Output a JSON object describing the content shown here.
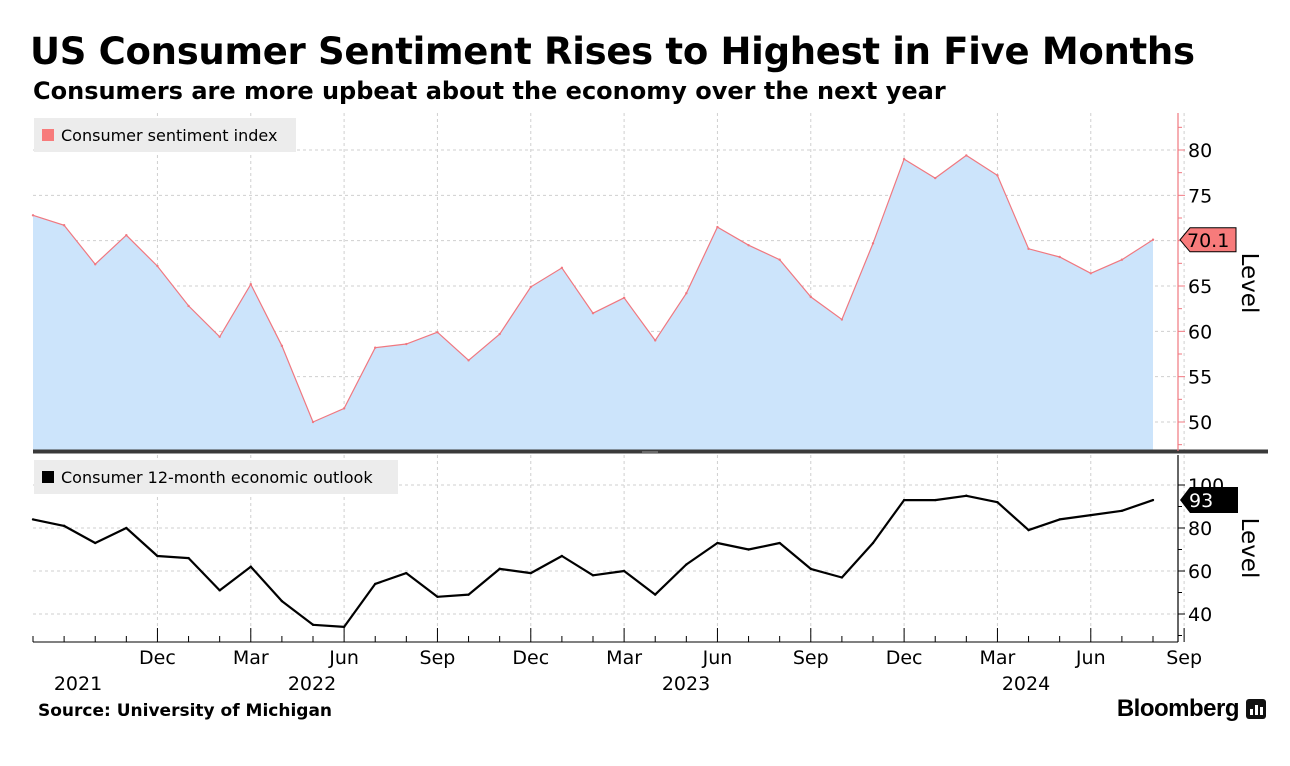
{
  "header": {
    "title": "US Consumer Sentiment Rises to Highest in Five Months",
    "subtitle": "Consumers are more upbeat about the economy over the next year"
  },
  "footer": {
    "source": "Source: University of Michigan",
    "brand": "Bloomberg"
  },
  "colors": {
    "sentiment_line": "#f07880",
    "sentiment_fill": "#cce4fb",
    "sentiment_badge": "#f77b7b",
    "outlook_line": "#000000",
    "grid": "#cfcfcf",
    "legend_bg": "#ececec"
  },
  "chart_data": [
    {
      "type": "area",
      "panel": "top",
      "series": [
        {
          "name": "Consumer sentiment index",
          "values": [
            72.8,
            71.7,
            67.4,
            70.6,
            67.2,
            62.8,
            59.4,
            65.2,
            58.4,
            50.0,
            51.5,
            58.2,
            58.6,
            59.9,
            56.8,
            59.7,
            64.9,
            67.0,
            62.0,
            63.7,
            59.0,
            64.2,
            71.5,
            69.5,
            67.9,
            63.8,
            61.3,
            69.7,
            79.0,
            76.9,
            79.4,
            77.2,
            69.1,
            68.2,
            66.4,
            67.9,
            70.1
          ]
        }
      ],
      "last_value_label": "70.1",
      "ylabel": "Level",
      "yticks": [
        50,
        55,
        60,
        65,
        70,
        75,
        80
      ],
      "ylim": [
        46.5,
        84
      ]
    },
    {
      "type": "line",
      "panel": "bottom",
      "series": [
        {
          "name": "Consumer 12-month economic outlook",
          "values": [
            84,
            81,
            73,
            80,
            67,
            66,
            51,
            62,
            46,
            35,
            34,
            54,
            59,
            48,
            49,
            61,
            59,
            67,
            58,
            60,
            49,
            63,
            73,
            70,
            73,
            61,
            57,
            73,
            93,
            93,
            95,
            92,
            79,
            84,
            86,
            88,
            93
          ]
        }
      ],
      "last_value_label": "93",
      "ylabel": "Level",
      "yticks": [
        40,
        60,
        80,
        100
      ],
      "ylim": [
        25,
        109
      ]
    }
  ],
  "x_axis": {
    "start": "2021-08",
    "end": "2024-09",
    "month_labels": [
      "Dec",
      "Mar",
      "Jun",
      "Sep",
      "Dec",
      "Mar",
      "Jun",
      "Sep",
      "Dec",
      "Mar",
      "Jun",
      "Sep"
    ],
    "year_labels": [
      "2021",
      "2022",
      "2023",
      "2024"
    ]
  }
}
